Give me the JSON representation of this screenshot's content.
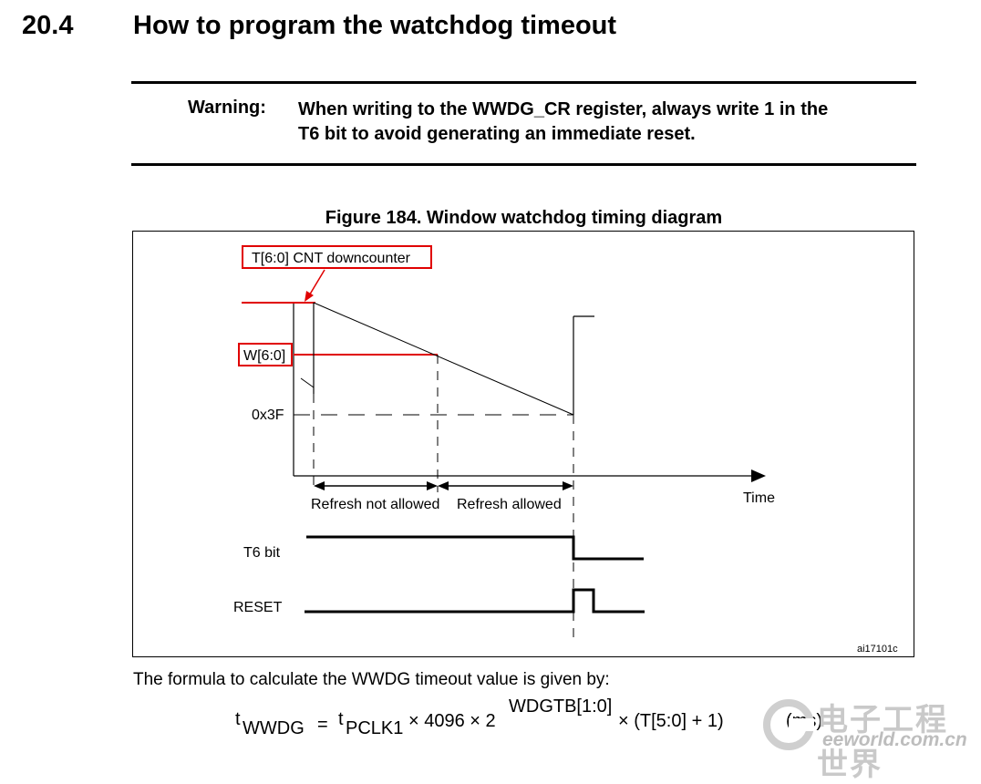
{
  "section": {
    "number": "20.4",
    "title": "How to program the watchdog timeout"
  },
  "warning": {
    "label": "Warning:",
    "line1": "When writing to the WWDG_CR register, always write 1 in the",
    "line2": "T6 bit to avoid generating an immediate reset."
  },
  "figure": {
    "title": "Figure 184. Window watchdog timing diagram",
    "labels": {
      "counter": "T[6:0] CNT downcounter",
      "window": "W[6:0]",
      "threshold": "0x3F",
      "time": "Time",
      "refresh_not_allowed": "Refresh not allowed",
      "refresh_allowed": "Refresh allowed",
      "t6_bit": "T6 bit",
      "reset": "RESET",
      "figure_id": "ai17101c"
    },
    "colors": {
      "highlight": "#e00000",
      "line": "#000000"
    }
  },
  "formula": {
    "intro": "The formula to calculate the WWDG timeout value is given by:",
    "t": "t",
    "t_sub": "WWDG",
    "equals": "=",
    "t2": "t",
    "t2_sub": "PCLK1",
    "times_4096": "× 4096 × 2",
    "exponent": "WDGTB[1:0]",
    "tail": "× (T[5:0] + 1)",
    "unit": "(ms)"
  },
  "watermark": {
    "chinese": "电子工程世界",
    "url": "eeworld.com.cn"
  }
}
